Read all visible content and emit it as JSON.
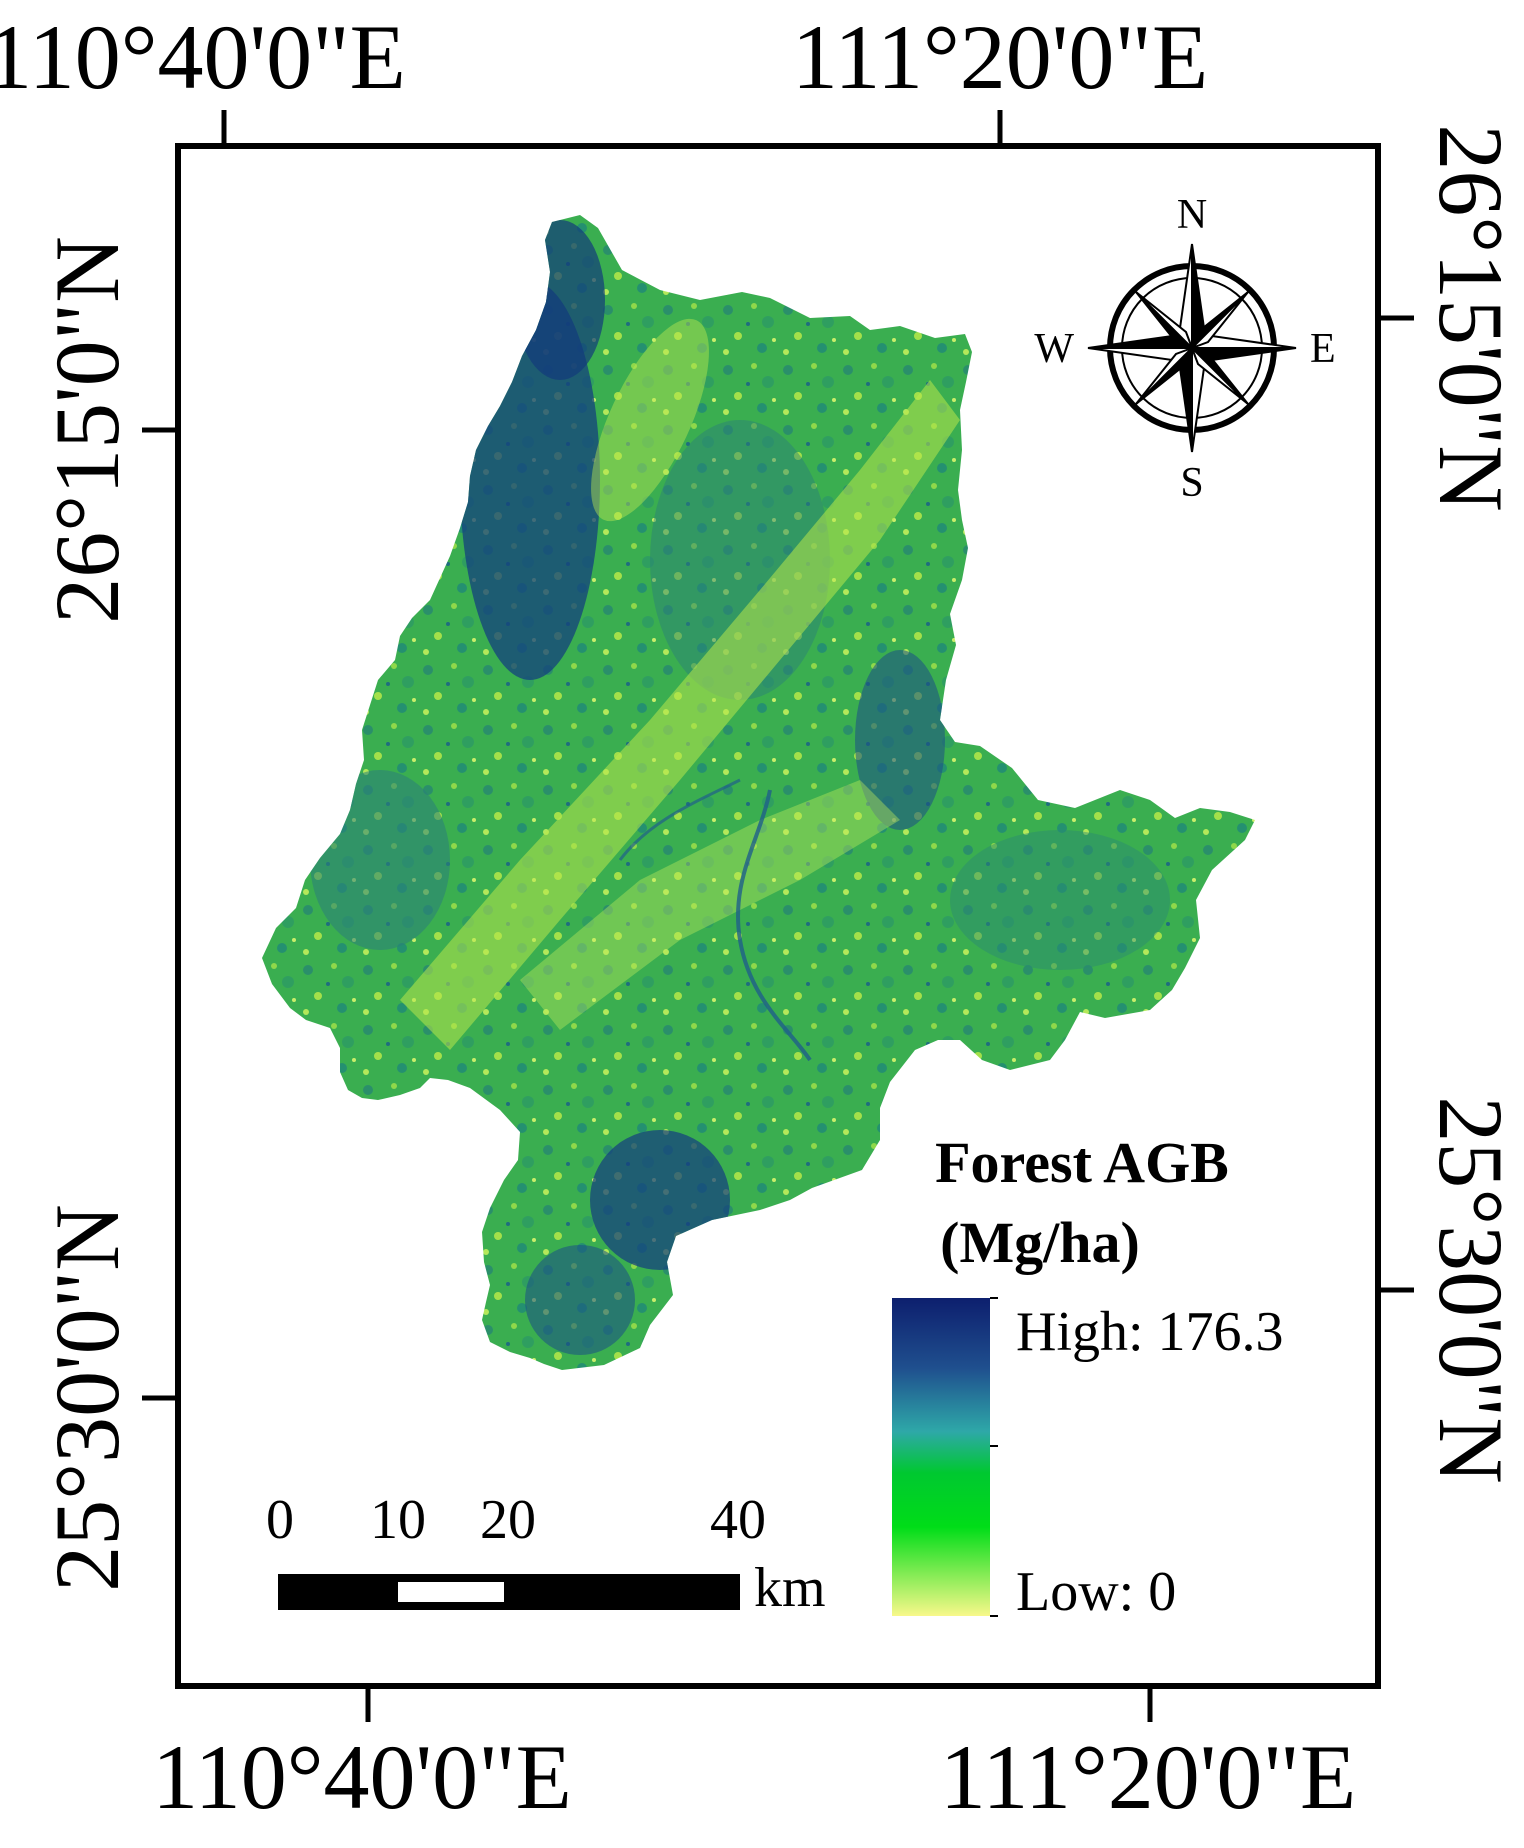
{
  "coordinates": {
    "top": [
      "110°40'0\"E",
      "111°20'0\"E"
    ],
    "bottom": [
      "110°40'0\"E",
      "111°20'0\"E"
    ],
    "left": [
      "26°15'0\"N",
      "25°30'0\"N"
    ],
    "right": [
      "26°15'0\"N",
      "25°30'0\"N"
    ]
  },
  "compass": {
    "n": "N",
    "s": "S",
    "e": "E",
    "w": "W"
  },
  "legend": {
    "title_line1": "Forest AGB",
    "title_line2": "(Mg/ha)",
    "high_label": "High: 176.3",
    "low_label": "Low: 0",
    "colors": [
      "#0d1f6e",
      "#1f6b9e",
      "#2ea8a0",
      "#00d21c",
      "#8fe840",
      "#f5f58a"
    ]
  },
  "scale_bar": {
    "ticks": [
      "0",
      "10",
      "20",
      "40"
    ],
    "unit": "km"
  },
  "colors": {
    "forest_dark": "#0d2a70",
    "forest_mid": "#2a9a6e",
    "forest_green": "#33b84a",
    "forest_light": "#b8e84a"
  }
}
